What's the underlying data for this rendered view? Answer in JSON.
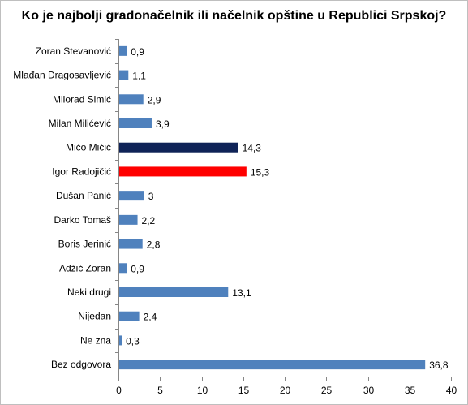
{
  "chart_data": {
    "type": "bar",
    "orientation": "horizontal",
    "title": "Ko je najbolji gradonačelnik  ili načelnik opštine u Republici Srpskoj?",
    "categories": [
      "Zoran Stevanović",
      "Mlađan Dragosavljević",
      "Milorad Simić",
      "Milan Milićević",
      "Mićo Mićić",
      "Igor Radojičić",
      "Dušan Panić",
      "Darko Tomaš",
      "Boris Jerinić",
      "Adžić Zoran",
      "Neki drugi",
      "Nijedan",
      "Ne zna",
      "Bez odgovora"
    ],
    "values": [
      0.9,
      1.1,
      2.9,
      3.9,
      14.3,
      15.3,
      3,
      2.2,
      2.8,
      0.9,
      13.1,
      2.4,
      0.3,
      36.8
    ],
    "value_labels": [
      "0,9",
      "1,1",
      "2,9",
      "3,9",
      "14,3",
      "15,3",
      "3",
      "2,2",
      "2,8",
      "0,9",
      "13,1",
      "2,4",
      "0,3",
      "36,8"
    ],
    "bar_colors": [
      "#4f81bd",
      "#4f81bd",
      "#4f81bd",
      "#4f81bd",
      "#0f2357",
      "#ff0000",
      "#4f81bd",
      "#4f81bd",
      "#4f81bd",
      "#4f81bd",
      "#4f81bd",
      "#4f81bd",
      "#4f81bd",
      "#4f81bd"
    ],
    "xlim": [
      0,
      40
    ],
    "xticks": [
      0,
      5,
      10,
      15,
      20,
      25,
      30,
      35,
      40
    ],
    "xlabel": "",
    "ylabel": "",
    "grid": false,
    "legend": "none"
  }
}
